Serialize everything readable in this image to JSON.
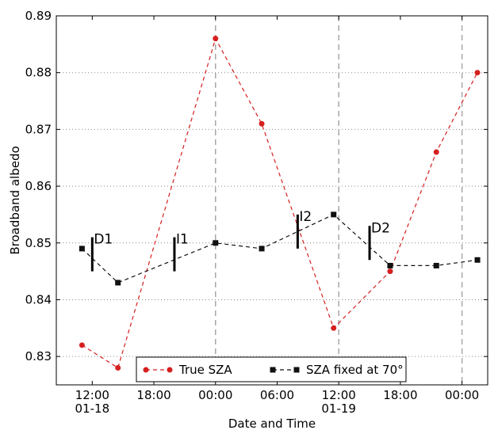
{
  "chart_data": {
    "type": "line",
    "xlabel": "Date and Time",
    "ylabel": "Broadband albedo",
    "xlim": [
      "2013-01-18T08:30",
      "2013-01-20T02:30"
    ],
    "ylim": [
      0.825,
      0.89
    ],
    "yticks": [
      0.83,
      0.84,
      0.85,
      0.86,
      0.87,
      0.88,
      0.89
    ],
    "ytick_labels": [
      "0.83",
      "0.84",
      "0.85",
      "0.86",
      "0.87",
      "0.88",
      "0.89"
    ],
    "xticks": [
      "2013-01-18T12:00",
      "2013-01-18T18:00",
      "2013-01-19T00:00",
      "2013-01-19T06:00",
      "2013-01-19T12:00",
      "2013-01-19T18:00",
      "2013-01-20T00:00"
    ],
    "xtick_labels": [
      "12:00\n01-18",
      "18:00",
      "00:00",
      "06:00",
      "12:00\n01-19",
      "18:00",
      "00:00"
    ],
    "grid": {
      "horizontal": "dotted",
      "vertical_dashed_at": [
        "2013-01-19T00:00",
        "2013-01-19T12:00",
        "2013-01-20T00:00"
      ]
    },
    "legend_position": "lower-center",
    "series": [
      {
        "name": "True SZA",
        "color": "#d62020",
        "linestyle": "dashed",
        "marker": "circle",
        "x": [
          "2013-01-18T11:00",
          "2013-01-18T14:30",
          "2013-01-19T00:00",
          "2013-01-19T04:30",
          "2013-01-19T11:30",
          "2013-01-19T17:00",
          "2013-01-19T21:30",
          "2013-01-20T01:30"
        ],
        "y": [
          0.832,
          0.828,
          0.886,
          0.871,
          0.835,
          0.845,
          0.866,
          0.88
        ]
      },
      {
        "name": "SZA fixed at 70°",
        "color": "#111111",
        "linestyle": "dashed",
        "marker": "square",
        "x": [
          "2013-01-18T11:00",
          "2013-01-18T14:30",
          "2013-01-19T00:00",
          "2013-01-19T04:30",
          "2013-01-19T11:30",
          "2013-01-19T17:00",
          "2013-01-19T21:30",
          "2013-01-20T01:30"
        ],
        "y": [
          0.849,
          0.843,
          0.85,
          0.849,
          0.855,
          0.846,
          0.846,
          0.847
        ]
      }
    ],
    "annotations": [
      {
        "label": "D1",
        "x": "2013-01-18T12:00",
        "y_from": 0.845,
        "y_to": 0.851
      },
      {
        "label": "I1",
        "x": "2013-01-18T20:00",
        "y_from": 0.845,
        "y_to": 0.851
      },
      {
        "label": "I2",
        "x": "2013-01-19T08:00",
        "y_from": 0.849,
        "y_to": 0.855
      },
      {
        "label": "D2",
        "x": "2013-01-19T15:00",
        "y_from": 0.847,
        "y_to": 0.853
      }
    ]
  }
}
